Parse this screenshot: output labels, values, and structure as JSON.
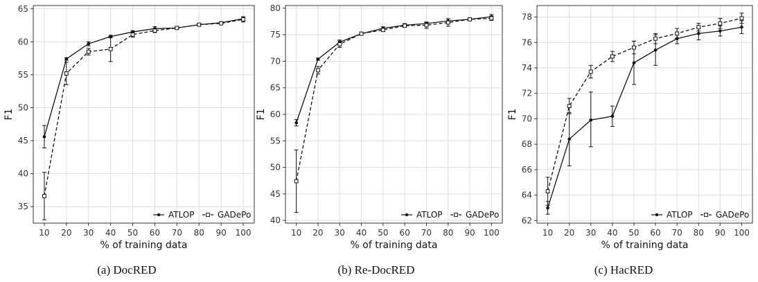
{
  "chart_data": [
    {
      "type": "line",
      "caption": "(a) DocRED",
      "xlabel": "% of training data",
      "ylabel": "F1",
      "x": [
        10,
        20,
        30,
        40,
        50,
        60,
        70,
        80,
        90,
        100
      ],
      "xticks": [
        "10",
        "20",
        "30",
        "40",
        "50",
        "60",
        "70",
        "80",
        "90",
        "100"
      ],
      "yticks": [
        35,
        40,
        45,
        50,
        55,
        60,
        65
      ],
      "ylim": [
        32.5,
        65.5
      ],
      "grid": true,
      "legend_position": "bottom-right",
      "series": [
        {
          "name": "ATLOP",
          "style": "solid",
          "marker": "filled-circle",
          "values": [
            45.6,
            57.4,
            59.7,
            60.8,
            61.5,
            62.0,
            62.1,
            62.6,
            62.9,
            63.5
          ],
          "err_low": [
            43.9,
            57.2,
            59.4,
            60.6,
            61.3,
            61.7,
            61.9,
            62.5,
            62.8,
            63.2
          ],
          "err_high": [
            47.3,
            57.6,
            60.0,
            61.0,
            61.7,
            62.3,
            62.3,
            62.7,
            63.0,
            63.8
          ]
        },
        {
          "name": "GADePo",
          "style": "dashed",
          "marker": "open-square",
          "values": [
            36.6,
            55.2,
            58.5,
            58.9,
            61.1,
            61.7,
            62.1,
            62.6,
            62.8,
            63.4
          ],
          "err_low": [
            33.0,
            53.5,
            58.0,
            57.0,
            60.7,
            61.4,
            61.9,
            62.4,
            62.7,
            63.0
          ],
          "err_high": [
            40.2,
            56.9,
            59.0,
            60.8,
            61.5,
            62.0,
            62.3,
            62.8,
            62.9,
            63.8
          ]
        }
      ]
    },
    {
      "type": "line",
      "caption": "(b) Re-DocRED",
      "xlabel": "% of training data",
      "ylabel": "F1",
      "x": [
        10,
        20,
        30,
        40,
        50,
        60,
        70,
        80,
        90,
        100
      ],
      "xticks": [
        "10",
        "20",
        "30",
        "40",
        "50",
        "60",
        "70",
        "80",
        "90",
        "100"
      ],
      "yticks": [
        40,
        45,
        50,
        55,
        60,
        65,
        70,
        75,
        80
      ],
      "ylim": [
        39.5,
        80.5
      ],
      "grid": true,
      "legend_position": "bottom-right",
      "series": [
        {
          "name": "ATLOP",
          "style": "solid",
          "marker": "filled-circle",
          "values": [
            58.4,
            70.4,
            73.6,
            75.2,
            76.2,
            76.8,
            77.1,
            77.6,
            77.9,
            78.4
          ],
          "err_low": [
            57.8,
            70.2,
            73.2,
            75.0,
            75.9,
            76.5,
            76.9,
            77.2,
            77.7,
            78.0
          ],
          "err_high": [
            59.0,
            70.6,
            74.0,
            75.4,
            76.5,
            77.1,
            77.3,
            78.0,
            78.1,
            78.8
          ]
        },
        {
          "name": "GADePo",
          "style": "dashed",
          "marker": "open-square",
          "values": [
            47.4,
            68.3,
            73.2,
            75.2,
            75.9,
            76.7,
            76.8,
            77.3,
            77.9,
            78.1
          ],
          "err_low": [
            41.5,
            67.6,
            72.6,
            74.9,
            75.6,
            76.4,
            76.2,
            76.6,
            77.7,
            77.7
          ],
          "err_high": [
            53.3,
            69.0,
            73.8,
            75.5,
            76.2,
            77.0,
            77.4,
            78.0,
            78.1,
            78.5
          ]
        }
      ]
    },
    {
      "type": "line",
      "caption": "(c) HacRED",
      "xlabel": "% of training data",
      "ylabel": "F1",
      "x": [
        10,
        20,
        30,
        40,
        50,
        60,
        70,
        80,
        90,
        100
      ],
      "xticks": [
        "10",
        "20",
        "30",
        "40",
        "50",
        "60",
        "70",
        "80",
        "90",
        "100"
      ],
      "yticks": [
        62,
        64,
        66,
        68,
        70,
        72,
        74,
        76,
        78
      ],
      "ylim": [
        61.8,
        78.9
      ],
      "grid": true,
      "legend_position": "bottom-right",
      "series": [
        {
          "name": "ATLOP",
          "style": "solid",
          "marker": "filled-circle",
          "values": [
            63.0,
            68.4,
            69.9,
            70.2,
            74.4,
            75.4,
            76.3,
            76.7,
            76.9,
            77.2
          ],
          "err_low": [
            62.5,
            66.3,
            67.8,
            69.4,
            72.7,
            74.2,
            75.9,
            76.2,
            76.5,
            76.7
          ],
          "err_high": [
            63.5,
            70.5,
            72.1,
            71.0,
            76.1,
            76.6,
            76.7,
            77.2,
            77.3,
            77.7
          ]
        },
        {
          "name": "GADePo",
          "style": "dashed",
          "marker": "open-square",
          "values": [
            64.3,
            71.0,
            73.7,
            74.9,
            75.6,
            76.3,
            76.7,
            77.2,
            77.5,
            77.9
          ],
          "err_low": [
            63.2,
            70.4,
            73.2,
            74.5,
            75.1,
            75.9,
            76.3,
            76.9,
            77.1,
            77.5
          ],
          "err_high": [
            65.4,
            71.6,
            74.2,
            75.3,
            76.1,
            76.7,
            77.1,
            77.5,
            77.9,
            78.3
          ]
        }
      ]
    }
  ]
}
